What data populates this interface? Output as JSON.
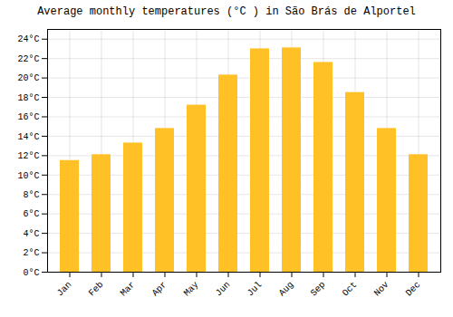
{
  "chart_data": {
    "type": "bar",
    "title": "Average monthly temperatures (°C ) in São Brás de Alportel",
    "categories": [
      "Jan",
      "Feb",
      "Mar",
      "Apr",
      "May",
      "Jun",
      "Jul",
      "Aug",
      "Sep",
      "Oct",
      "Nov",
      "Dec"
    ],
    "values": [
      11.5,
      12.1,
      13.3,
      14.8,
      17.2,
      20.3,
      23.0,
      23.1,
      21.6,
      18.5,
      14.8,
      12.1
    ],
    "color": "#FFC125",
    "ylim": [
      0,
      25
    ],
    "yticks": [
      {
        "value": 0,
        "label": "0°C"
      },
      {
        "value": 2,
        "label": "2°C"
      },
      {
        "value": 4,
        "label": "4°C"
      },
      {
        "value": 6,
        "label": "6°C"
      },
      {
        "value": 8,
        "label": "8°C"
      },
      {
        "value": 10,
        "label": "10°C"
      },
      {
        "value": 12,
        "label": "12°C"
      },
      {
        "value": 14,
        "label": "14°C"
      },
      {
        "value": 16,
        "label": "16°C"
      },
      {
        "value": 18,
        "label": "18°C"
      },
      {
        "value": 20,
        "label": "20°C"
      },
      {
        "value": 22,
        "label": "22°C"
      },
      {
        "value": 24,
        "label": "24°C"
      }
    ],
    "grid": true
  }
}
